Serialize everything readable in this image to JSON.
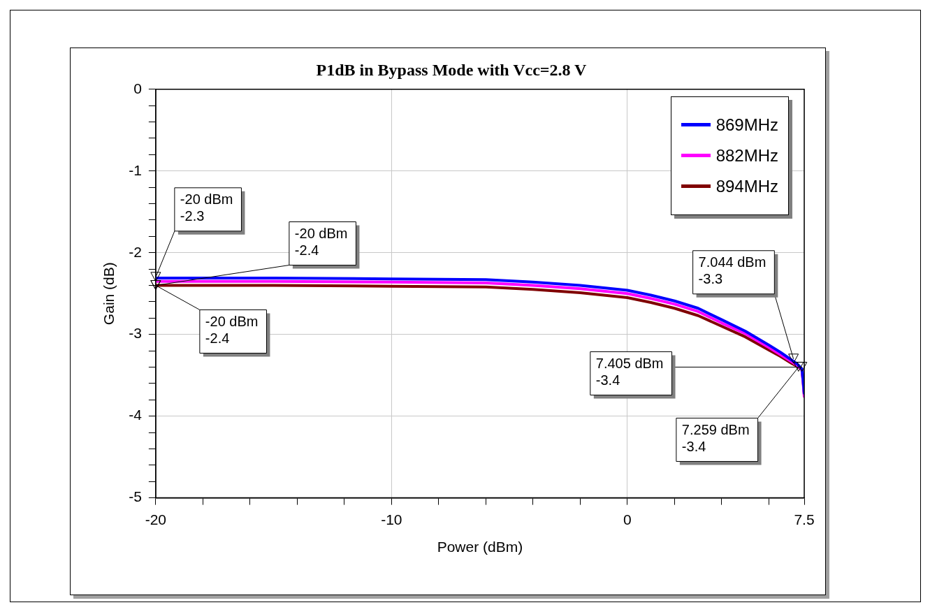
{
  "chart_data": {
    "type": "line",
    "title": "P1dB in Bypass Mode with Vcc=2.8 V",
    "xlabel": "Power (dBm)",
    "ylabel": "Gain (dB)",
    "x": [
      -20,
      -15,
      -10,
      -6,
      -4,
      -2,
      0,
      1,
      2,
      3,
      4,
      5,
      6,
      6.5,
      7,
      7.2,
      7.4,
      7.45,
      7.5
    ],
    "series": [
      {
        "name": "869MHz",
        "color": "#0000ff",
        "values": [
          -2.31,
          -2.31,
          -2.32,
          -2.33,
          -2.36,
          -2.4,
          -2.46,
          -2.52,
          -2.59,
          -2.68,
          -2.82,
          -2.96,
          -3.13,
          -3.22,
          -3.32,
          -3.36,
          -3.42,
          -3.55,
          -3.72
        ]
      },
      {
        "name": "882MHz",
        "color": "#ff00ff",
        "values": [
          -2.35,
          -2.35,
          -2.36,
          -2.37,
          -2.4,
          -2.44,
          -2.5,
          -2.56,
          -2.63,
          -2.72,
          -2.86,
          -2.99,
          -3.16,
          -3.25,
          -3.34,
          -3.38,
          -3.43,
          -3.58,
          -3.76
        ]
      },
      {
        "name": "894MHz",
        "color": "#800000",
        "values": [
          -2.4,
          -2.4,
          -2.41,
          -2.42,
          -2.45,
          -2.49,
          -2.55,
          -2.61,
          -2.68,
          -2.77,
          -2.9,
          -3.03,
          -3.19,
          -3.27,
          -3.36,
          -3.39,
          -3.43,
          -3.56,
          -3.74
        ]
      }
    ],
    "xlim": [
      -20,
      7.5
    ],
    "xticks": [
      -20,
      {
        "value": -18,
        "label": null
      },
      {
        "value": -16,
        "label": null
      },
      {
        "value": -14,
        "label": null
      },
      {
        "value": -12,
        "label": null
      },
      -10,
      {
        "value": -8,
        "label": null
      },
      {
        "value": -6,
        "label": null
      },
      {
        "value": -4,
        "label": null
      },
      {
        "value": -2,
        "label": null
      },
      0,
      {
        "value": 2,
        "label": null
      },
      {
        "value": 4,
        "label": null
      },
      {
        "value": 6,
        "label": null
      },
      7.5
    ],
    "ylim": [
      -5,
      0
    ],
    "yticks": [
      -5,
      {
        "value": -4.8,
        "label": null
      },
      {
        "value": -4.6,
        "label": null
      },
      {
        "value": -4.4,
        "label": null
      },
      {
        "value": -4.2,
        "label": null
      },
      -4,
      {
        "value": -3.8,
        "label": null
      },
      {
        "value": -3.6,
        "label": null
      },
      {
        "value": -3.4,
        "label": null
      },
      {
        "value": -3.2,
        "label": null
      },
      -3,
      {
        "value": -2.8,
        "label": null
      },
      {
        "value": -2.6,
        "label": null
      },
      {
        "value": -2.4,
        "label": null
      },
      {
        "value": -2.2,
        "label": null
      },
      -2,
      {
        "value": -1.8,
        "label": null
      },
      {
        "value": -1.6,
        "label": null
      },
      {
        "value": -1.4,
        "label": null
      },
      {
        "value": -1.2,
        "label": null
      },
      -1,
      {
        "value": -0.8,
        "label": null
      },
      {
        "value": -0.6,
        "label": null
      },
      {
        "value": -0.4,
        "label": null
      },
      {
        "value": -0.2,
        "label": null
      },
      0
    ],
    "grid": true,
    "legend": "top right",
    "line_style": "solid",
    "marker": "none",
    "annotations": [
      {
        "text": "-20 dBm\n-2.3",
        "x": -20,
        "y": -2.3
      },
      {
        "text": "-20 dBm\n-2.4",
        "x": -20,
        "y": -2.4
      },
      {
        "text": "-20 dBm\n-2.4",
        "x": -20,
        "y": -2.4
      },
      {
        "text": "7.044 dBm\n-3.3",
        "x": 7.044,
        "y": -3.3
      },
      {
        "text": "7.405 dBm\n-3.4",
        "x": 7.405,
        "y": -3.4
      },
      {
        "text": "7.259 dBm\n-3.4",
        "x": 7.259,
        "y": -3.4
      }
    ]
  }
}
